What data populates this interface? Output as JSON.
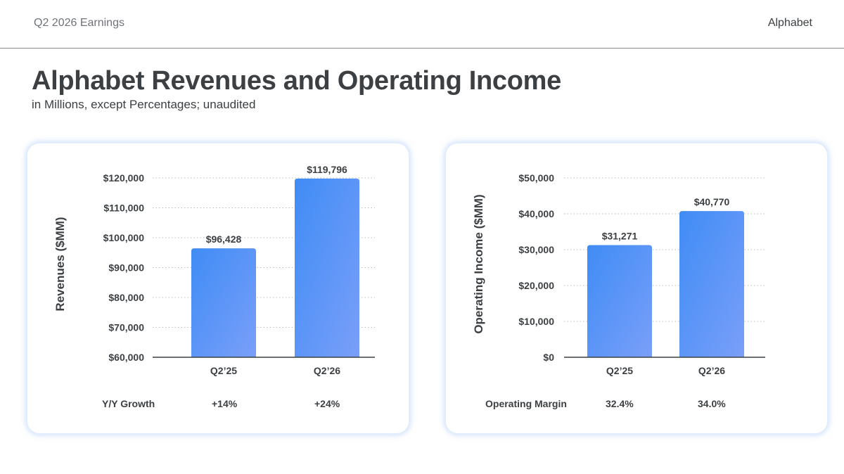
{
  "header": {
    "left_text": "Q2 2026 Earnings",
    "right_text": "Alphabet"
  },
  "page": {
    "title": "Alphabet Revenues and Operating Income",
    "subtitle": "in Millions, except Percentages; unaudited"
  },
  "colors": {
    "bar_top": "#3f8cf5",
    "bar_bottom": "#7a9ff9",
    "gridline": "#bdbdbd",
    "baseline": "#3c4043",
    "text": "#3c4043",
    "card_glow": "#aac8f5"
  },
  "chart_data": [
    {
      "type": "bar",
      "title": "",
      "ylabel": "Revenues ($MM)",
      "xlabel": "",
      "categories": [
        "Q2’25",
        "Q2’26"
      ],
      "values": [
        96428,
        119796
      ],
      "value_labels": [
        "$96,428",
        "$119,796"
      ],
      "ylim": [
        60000,
        120000
      ],
      "yticks": [
        60000,
        70000,
        80000,
        90000,
        100000,
        110000,
        120000
      ],
      "ytick_labels": [
        "$60,000",
        "$70,000",
        "$80,000",
        "$90,000",
        "$100,000",
        "$110,000",
        "$120,000"
      ],
      "grid": true,
      "footer": {
        "label": "Y/Y Growth",
        "values": [
          "+14%",
          "+24%"
        ]
      }
    },
    {
      "type": "bar",
      "title": "",
      "ylabel": "Operating Income ($MM)",
      "xlabel": "",
      "categories": [
        "Q2’25",
        "Q2’26"
      ],
      "values": [
        31271,
        40770
      ],
      "value_labels": [
        "$31,271",
        "$40,770"
      ],
      "ylim": [
        0,
        50000
      ],
      "yticks": [
        0,
        10000,
        20000,
        30000,
        40000,
        50000
      ],
      "ytick_labels": [
        "$0",
        "$10,000",
        "$20,000",
        "$30,000",
        "$40,000",
        "$50,000"
      ],
      "grid": true,
      "footer": {
        "label": "Operating Margin",
        "values": [
          "32.4%",
          "34.0%"
        ]
      }
    }
  ]
}
